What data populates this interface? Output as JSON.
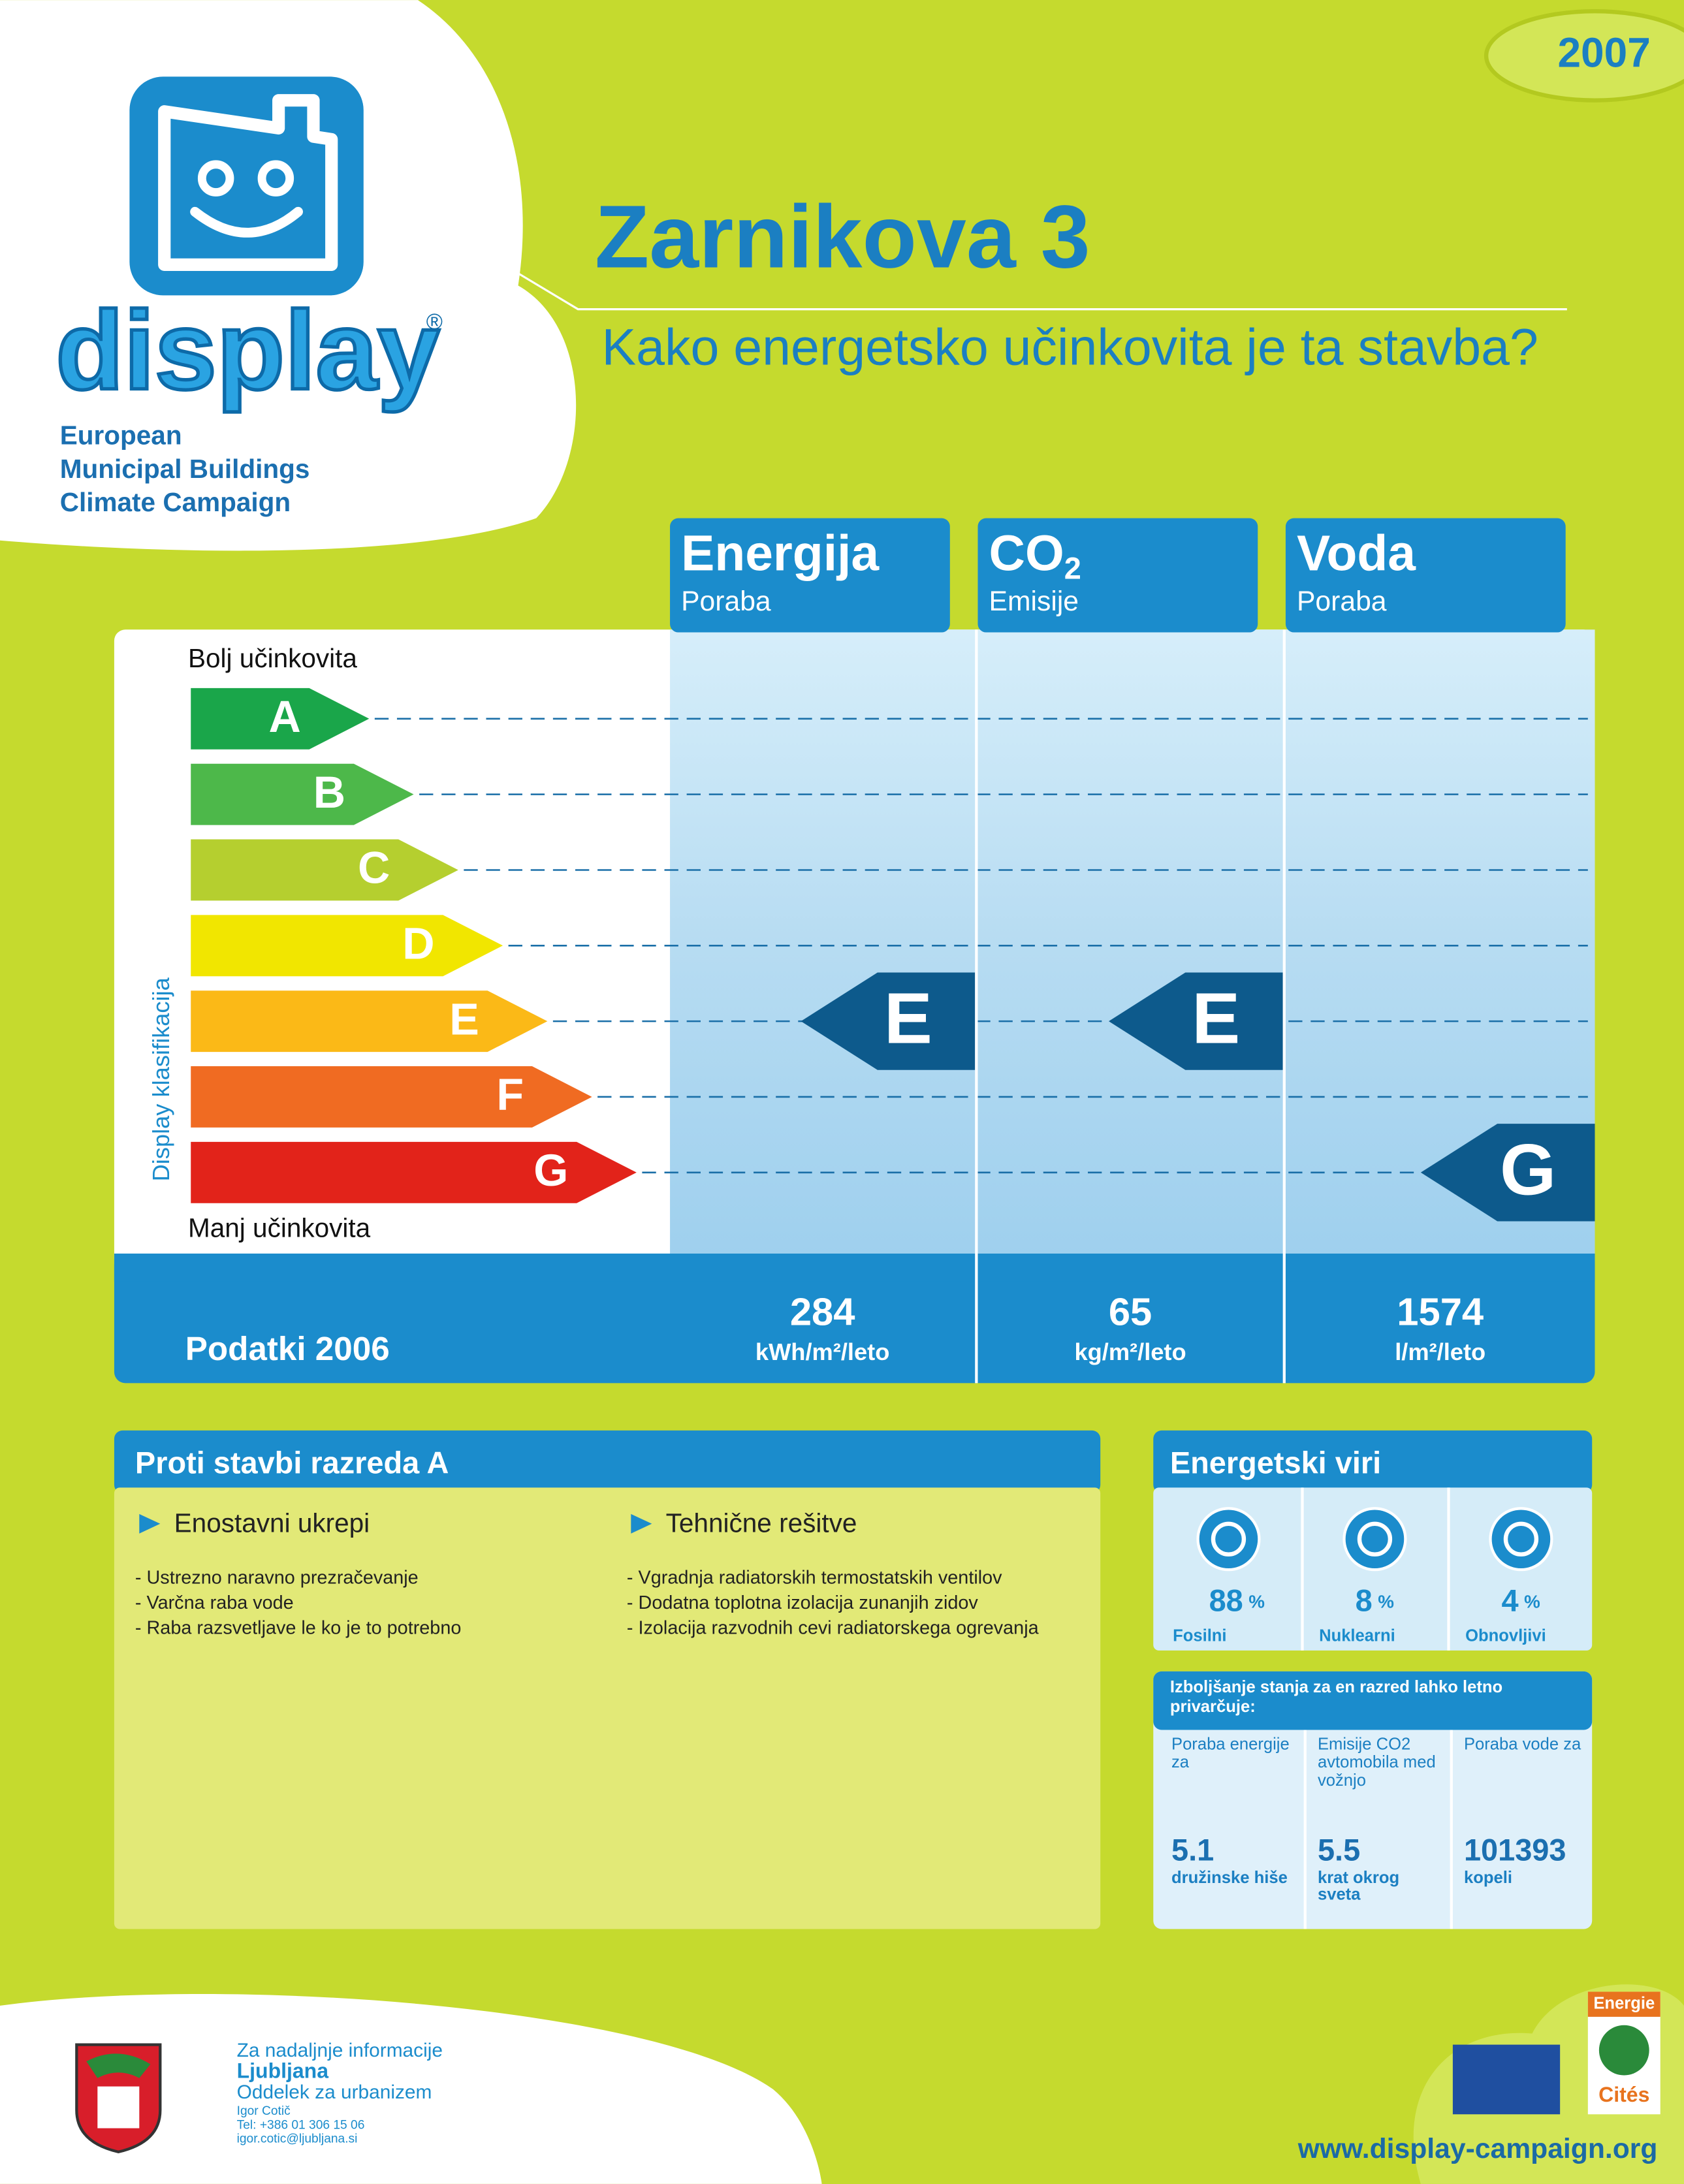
{
  "year": "2007",
  "logo": {
    "name": "display",
    "registered": "®",
    "lines": [
      "European",
      "Municipal Buildings",
      "Climate Campaign"
    ]
  },
  "header": {
    "title": "Zarnikova 3",
    "subtitle": "Kako energetsko učinkovita je ta stavba?"
  },
  "scale": {
    "axis_label": "Display klasifikacija",
    "top_label": "Bolj učinkovita",
    "bottom_label": "Manj učinkovita",
    "classes": [
      "A",
      "B",
      "C",
      "D",
      "E",
      "F",
      "G"
    ]
  },
  "indicators": [
    {
      "title": "Energija",
      "subtitle": "Poraba",
      "rating": "E",
      "value": 284,
      "unit": "kWh/m²/leto"
    },
    {
      "title": "CO",
      "title_sub": "2",
      "subtitle": "Emisije",
      "rating": "E",
      "value": 65,
      "unit": "kg/m²/leto"
    },
    {
      "title": "Voda",
      "subtitle": "Poraba",
      "rating": "G",
      "value": 1574,
      "unit": "l/m²/leto"
    }
  ],
  "data_label": "Podatki 2006",
  "measures": {
    "title": "Proti stavbi razreda A",
    "groups": [
      {
        "heading": "Enostavni ukrepi",
        "items": [
          "- Ustrezno naravno prezračevanje",
          "- Varčna raba vode",
          "- Raba razsvetljave le ko je to potrebno"
        ]
      },
      {
        "heading": "Tehnične rešitve",
        "items": [
          "- Vgradnja radiatorskih termostatskih ventilov",
          "- Dodatna toplotna izolacija zunanjih zidov",
          "- Izolacija razvodnih cevi radiatorskega ogrevanja"
        ]
      }
    ]
  },
  "sources": {
    "title": "Energetski viri",
    "items": [
      {
        "value": 88,
        "unit": "%",
        "label": "Fosilni"
      },
      {
        "value": 8,
        "unit": "%",
        "label": "Nuklearni"
      },
      {
        "value": 4,
        "unit": "%",
        "label": "Obnovljivi"
      }
    ]
  },
  "savings": {
    "title": "Izboljšanje stanja za en razred lahko letno privarčuje:",
    "items": [
      {
        "label": "Poraba energije za",
        "value": 5.1,
        "note": "družinske hiše"
      },
      {
        "label": "Emisije CO2 avtomobila med vožnjo",
        "value": 5.5,
        "note": "krat okrog sveta"
      },
      {
        "label": "Poraba vode za",
        "value": 101393,
        "note": "kopeli"
      }
    ]
  },
  "footer": {
    "intro": "Za nadaljnje informacije",
    "city": "Ljubljana",
    "department": "Oddelek za urbanizem",
    "contact": [
      "Igor Cotič",
      "Tel: +386 01 306 15 06",
      "igor.cotic@ljubljana.si"
    ],
    "website": "www.display-campaign.org",
    "badge": [
      "Energie",
      "Cités"
    ]
  }
}
